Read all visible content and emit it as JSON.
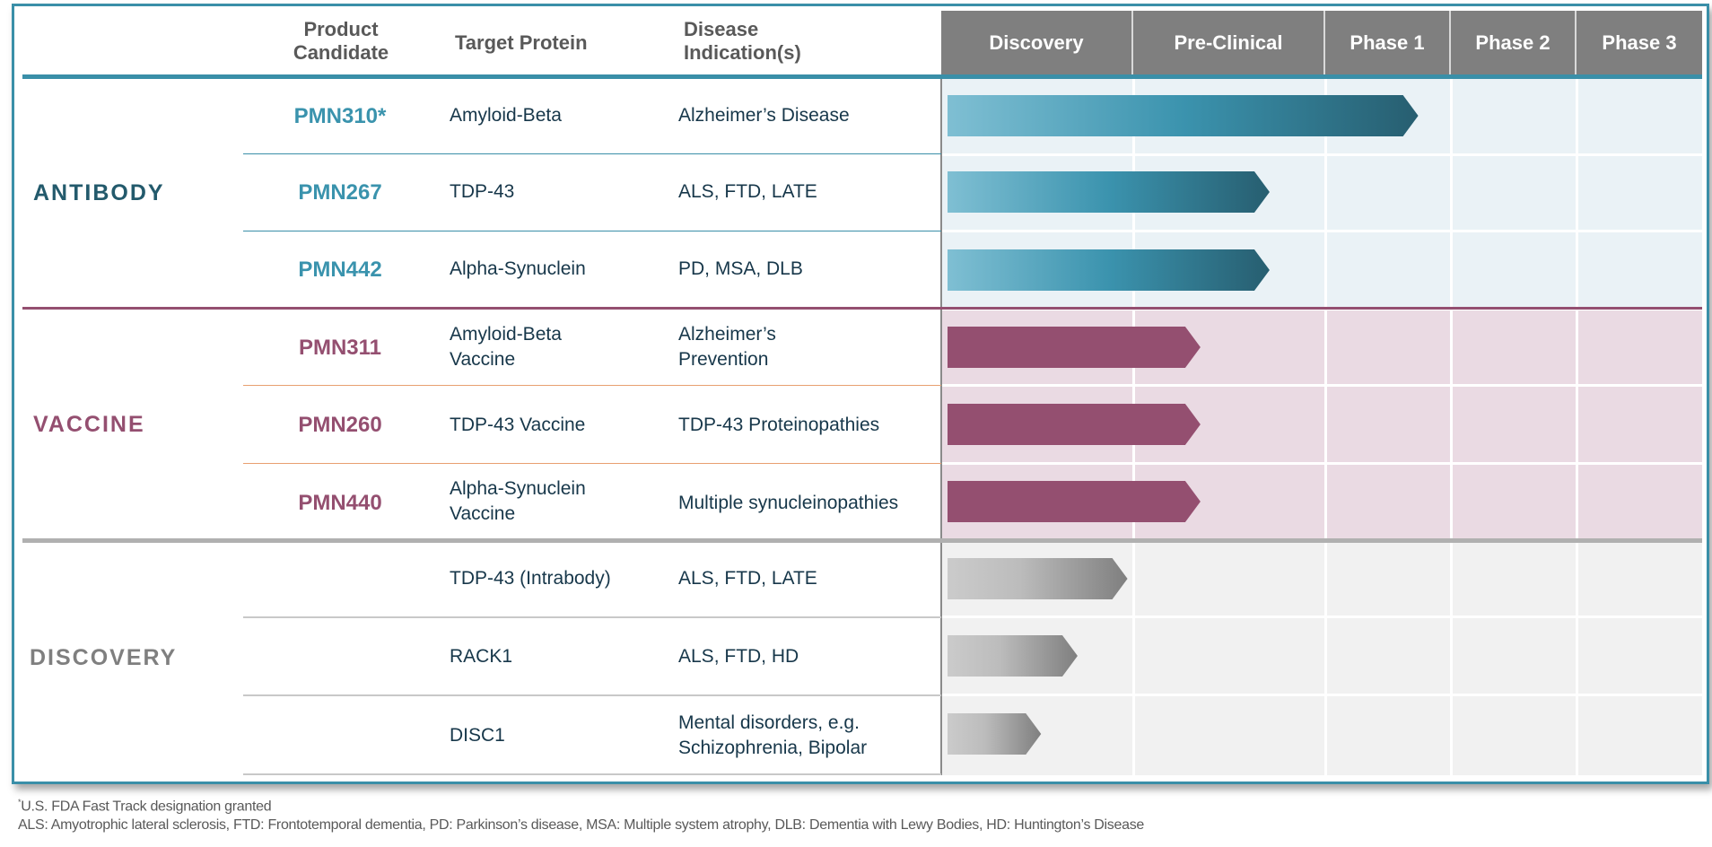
{
  "header": {
    "product_candidate": [
      "Product",
      "Candidate"
    ],
    "target_protein": "Target Protein",
    "disease_indication": [
      "Disease",
      "Indication(s)"
    ],
    "stages": [
      "Discovery",
      "Pre-Clinical",
      "Phase 1",
      "Phase 2",
      "Phase 3"
    ]
  },
  "colors": {
    "frame": "#3a8fa8",
    "antibody": "#235a6c",
    "antibody_product": "#3a93ad",
    "vaccine": "#944f70",
    "discovery": "#7f7f7f",
    "header_bg": "#7f7f7f"
  },
  "groups": [
    {
      "label": "ANTIBODY",
      "rows": [
        {
          "product": "PMN310*",
          "target": [
            "Amyloid-Beta"
          ],
          "disease": [
            "Alzheimer’s Disease"
          ],
          "progress_stages": 2.74
        },
        {
          "product": "PMN267",
          "target": [
            "TDP-43"
          ],
          "disease": [
            "ALS, FTD, LATE"
          ],
          "progress_stages": 1.71
        },
        {
          "product": "PMN442",
          "target": [
            "Alpha-Synuclein"
          ],
          "disease": [
            "PD, MSA, DLB"
          ],
          "progress_stages": 1.71
        }
      ]
    },
    {
      "label": "VACCINE",
      "rows": [
        {
          "product": "PMN311",
          "target": [
            "Amyloid-Beta",
            "Vaccine"
          ],
          "disease": [
            "Alzheimer’s",
            "Prevention"
          ],
          "progress_stages": 1.35
        },
        {
          "product": "PMN260",
          "target": [
            "TDP-43 Vaccine"
          ],
          "disease": [
            "TDP-43 Proteinopathies"
          ],
          "progress_stages": 1.35
        },
        {
          "product": "PMN440",
          "target": [
            "Alpha-Synuclein",
            "Vaccine"
          ],
          "disease": [
            "Multiple synucleinopathies"
          ],
          "progress_stages": 1.35
        }
      ]
    },
    {
      "label": "DISCOVERY",
      "rows": [
        {
          "product": "",
          "target": [
            "TDP-43 (Intrabody)"
          ],
          "disease": [
            "ALS, FTD, LATE"
          ],
          "progress_stages": 0.97
        },
        {
          "product": "",
          "target": [
            "RACK1"
          ],
          "disease": [
            "ALS, FTD, HD"
          ],
          "progress_stages": 0.71
        },
        {
          "product": "",
          "target": [
            "DISC1"
          ],
          "disease": [
            "Mental disorders, e.g.",
            "Schizophrenia, Bipolar"
          ],
          "progress_stages": 0.52
        }
      ]
    }
  ],
  "chart_data": {
    "type": "bar",
    "orientation": "horizontal",
    "title": "",
    "x_categories": [
      "Discovery",
      "Pre-Clinical",
      "Phase 1",
      "Phase 2",
      "Phase 3"
    ],
    "xlim_stages": [
      0,
      5
    ],
    "unit": "stages completed (0 = start of Discovery, 5 = end of Phase 3)",
    "categories": [
      "PMN310*",
      "PMN267",
      "PMN442",
      "PMN311",
      "PMN260",
      "PMN440",
      "TDP-43 (Intrabody)",
      "RACK1",
      "DISC1"
    ],
    "values": [
      2.74,
      1.71,
      1.71,
      1.35,
      1.35,
      1.35,
      0.97,
      0.71,
      0.52
    ],
    "series_groups": [
      "ANTIBODY",
      "ANTIBODY",
      "ANTIBODY",
      "VACCINE",
      "VACCINE",
      "VACCINE",
      "DISCOVERY",
      "DISCOVERY",
      "DISCOVERY"
    ],
    "grid": true
  },
  "footer": {
    "note": "U.S. FDA Fast Track designation granted",
    "note_marker": "*",
    "abbreviations": "ALS: Amyotrophic lateral  sclerosis, FTD: Frontotemporal dementia, PD: Parkinson’s disease, MSA: Multiple system atrophy, DLB: Dementia with Lewy Bodies, HD: Huntington’s Disease"
  }
}
